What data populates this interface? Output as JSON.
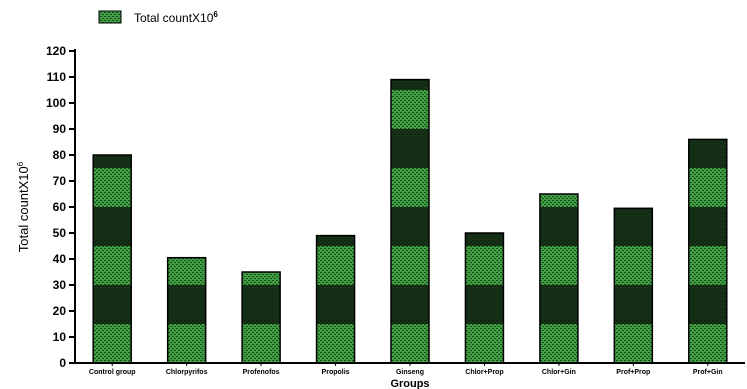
{
  "chart_data": {
    "type": "bar",
    "categories": [
      "Control group",
      "Chlorpyrifos",
      "Profenofos",
      "Propolis",
      "Ginseng",
      "Chlor+Prop",
      "Chlor+Gin",
      "Prof+Prop",
      "Prof+Gin"
    ],
    "series": [
      {
        "name": "Total countX10",
        "name_sup": "6",
        "values": [
          80,
          40.5,
          35,
          49,
          109,
          50,
          65,
          59.5,
          86
        ]
      }
    ],
    "ylabel": "Total countX10",
    "ylabel_sup": "6",
    "xlabel": "Groups",
    "ylim": [
      0,
      120
    ],
    "yticks": [
      0,
      10,
      20,
      30,
      40,
      50,
      60,
      70,
      80,
      90,
      100,
      110,
      120
    ],
    "grid": false,
    "legend_position": "top-left",
    "colors": {
      "bar_green": "#3f9f42",
      "bar_dark": "#0d1a0d",
      "axis": "#000000"
    }
  }
}
